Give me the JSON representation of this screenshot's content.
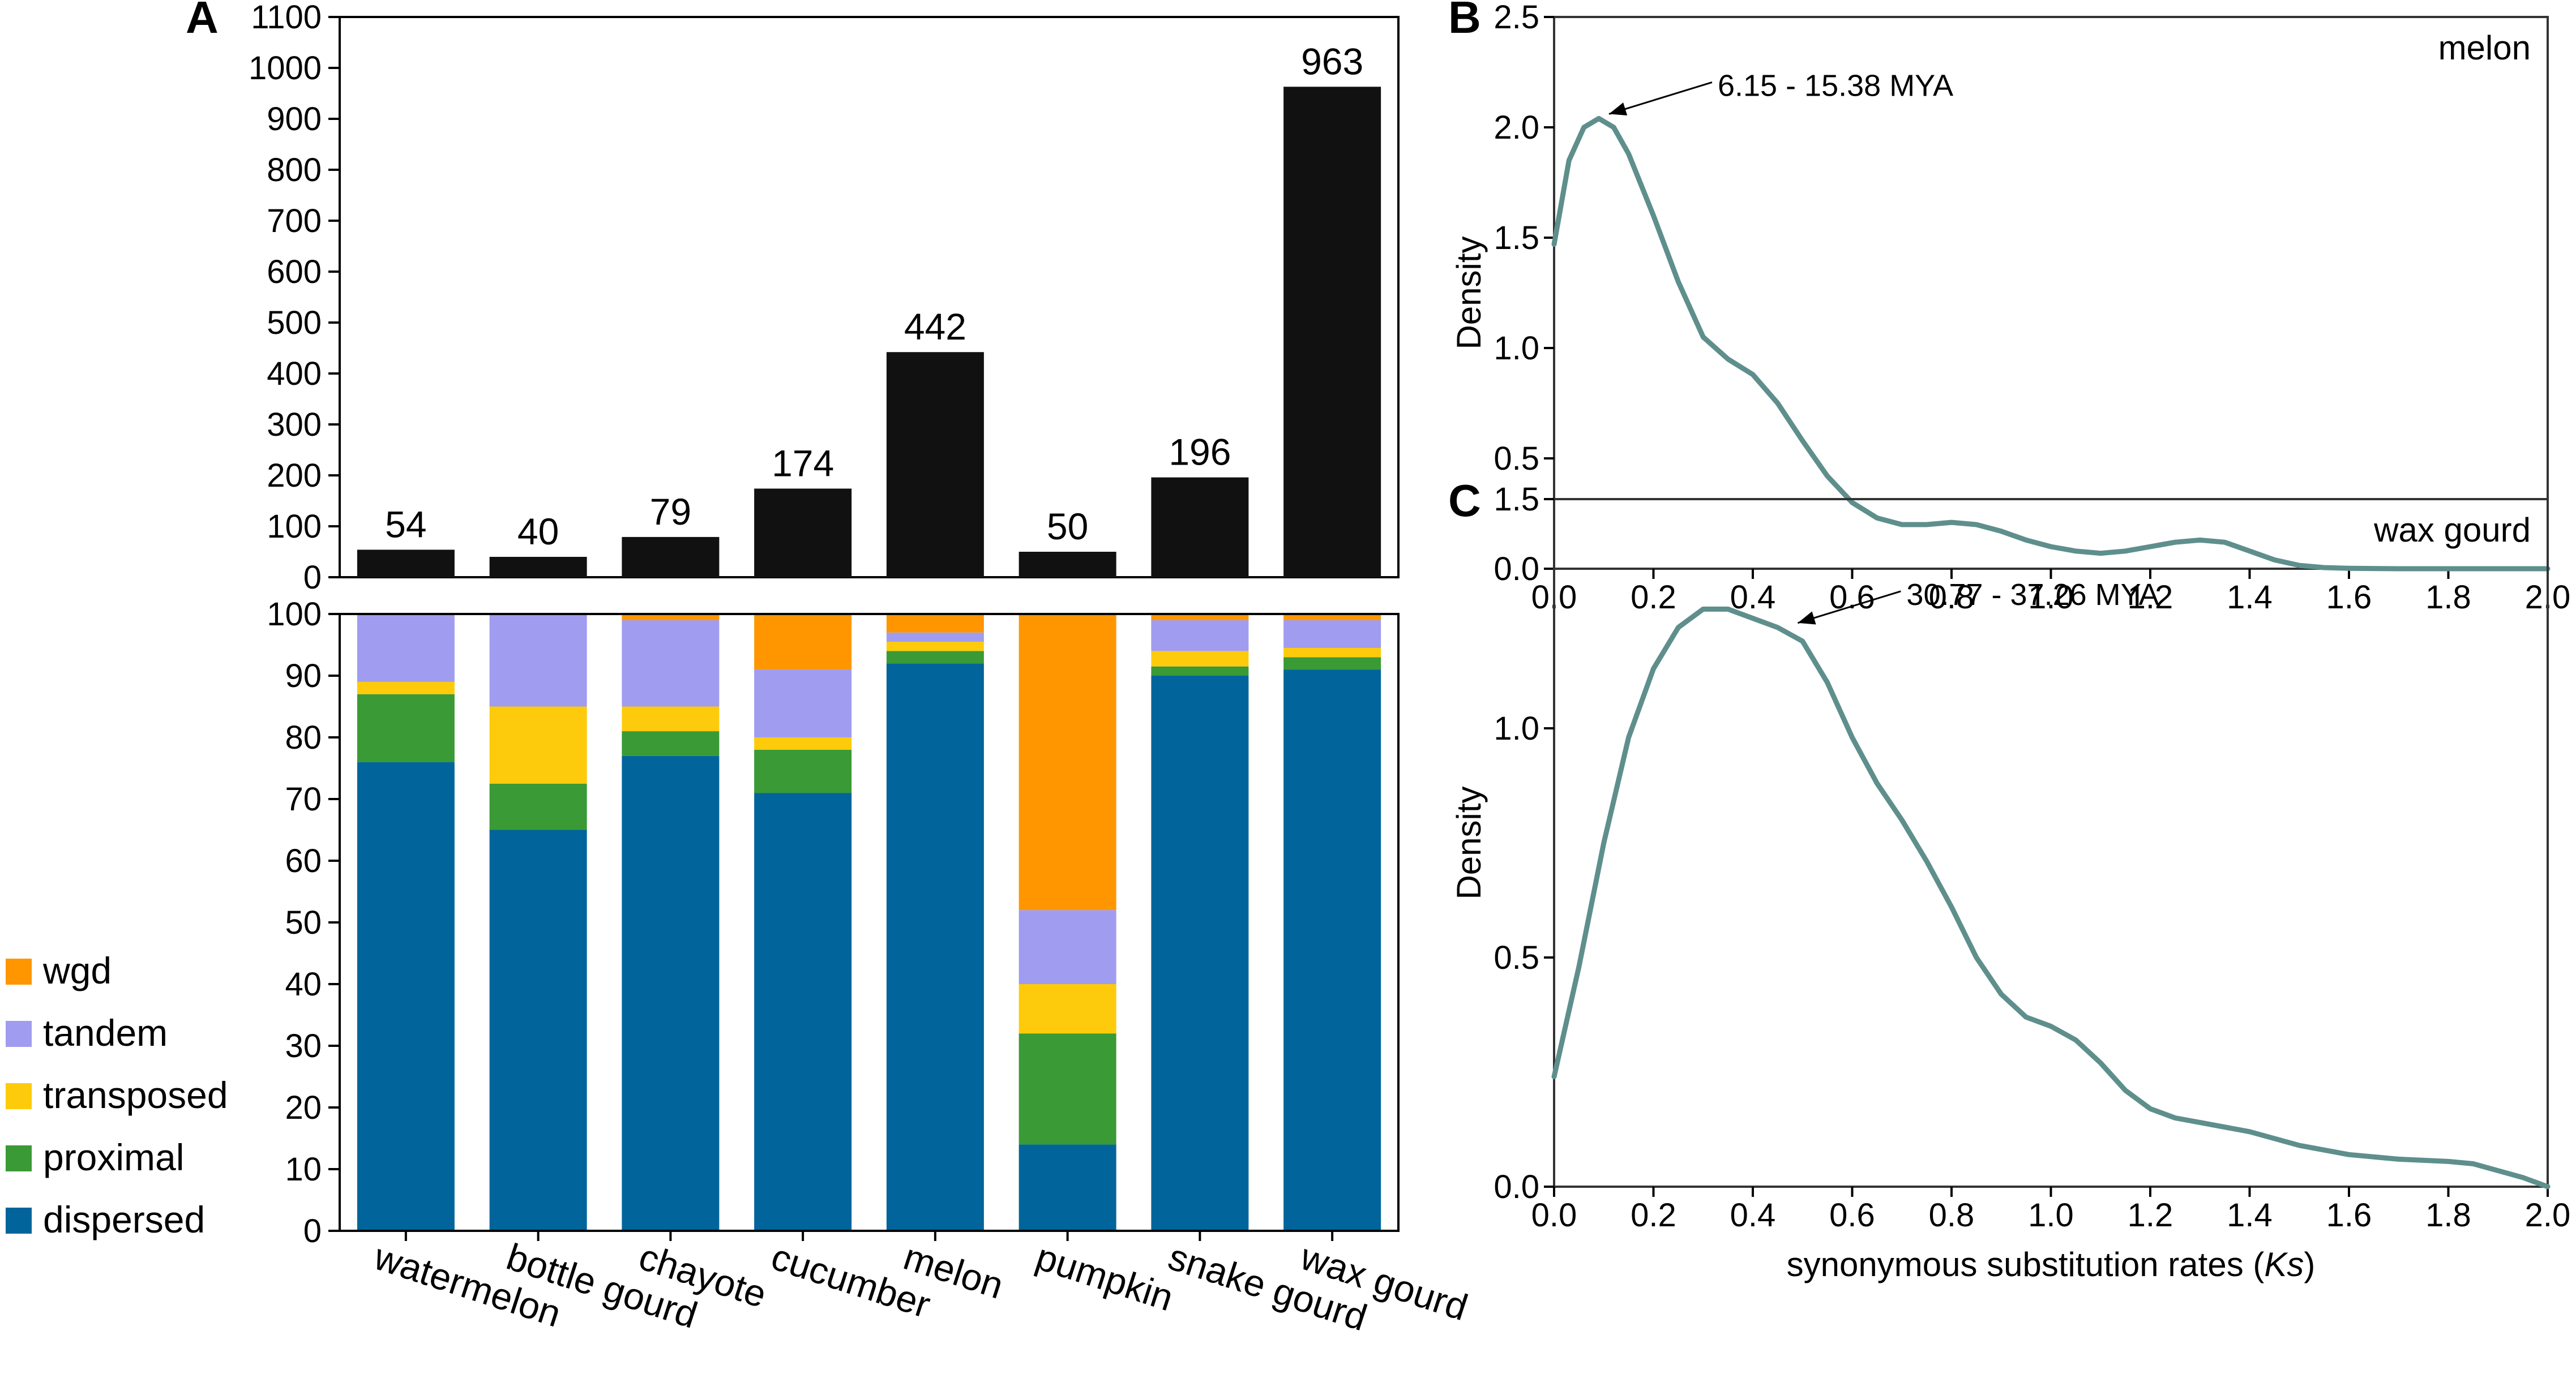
{
  "chart_data": [
    {
      "panel": "A",
      "type": "bar",
      "title": "",
      "categories": [
        "watermelon",
        "bottle gourd",
        "chayote",
        "cucumber",
        "melon",
        "pumpkin",
        "snake gourd",
        "wax gourd"
      ],
      "values": [
        54,
        40,
        79,
        174,
        442,
        50,
        196,
        963
      ],
      "value_labels": [
        "54",
        "40",
        "79",
        "174",
        "442",
        "50",
        "196",
        "963"
      ],
      "ylim": [
        0,
        1100
      ],
      "yticks": [
        "0",
        "100",
        "200",
        "300",
        "400",
        "500",
        "600",
        "700",
        "800",
        "900",
        "1000",
        "1100"
      ],
      "color": "#111111"
    },
    {
      "panel": "A",
      "type": "bar",
      "stacked": true,
      "categories": [
        "watermelon",
        "bottle gourd",
        "chayote",
        "cucumber",
        "melon",
        "pumpkin",
        "snake gourd",
        "wax gourd"
      ],
      "ylim": [
        0,
        100
      ],
      "yticks": [
        "0",
        "10",
        "20",
        "30",
        "40",
        "50",
        "60",
        "70",
        "80",
        "90",
        "100"
      ],
      "series": [
        {
          "name": "dispersed",
          "color": "#01659b",
          "values": [
            76,
            65,
            77,
            71,
            92,
            14,
            90,
            91
          ]
        },
        {
          "name": "proximal",
          "color": "#3a9a36",
          "values": [
            11,
            7.5,
            4,
            7,
            2,
            18,
            1.5,
            2
          ]
        },
        {
          "name": "transposed",
          "color": "#fdcb0b",
          "values": [
            2,
            12.5,
            4,
            2,
            1.5,
            8,
            2.5,
            1.5
          ]
        },
        {
          "name": "tandem",
          "color": "#a09cf0",
          "values": [
            11,
            15,
            14,
            11,
            1.5,
            12,
            5,
            4.5
          ]
        },
        {
          "name": "wgd",
          "color": "#ff9600",
          "values": [
            0,
            0,
            1,
            9,
            3,
            48,
            1,
            1
          ]
        }
      ],
      "legend": [
        "wgd",
        "tandem",
        "transposed",
        "proximal",
        "dispersed"
      ]
    },
    {
      "panel": "B",
      "type": "line",
      "label": "melon",
      "xlabel": "",
      "ylabel": "Density",
      "xlim": [
        0,
        2.0
      ],
      "ylim": [
        0,
        2.5
      ],
      "xticks": [
        "0.0",
        "0.2",
        "0.4",
        "0.6",
        "0.8",
        "1.0",
        "1.2",
        "1.4",
        "1.6",
        "1.8",
        "2.0"
      ],
      "yticks": [
        "0.0",
        "0.5",
        "1.0",
        "1.5",
        "2.0",
        "2.5"
      ],
      "annotation": {
        "text": "6.15 - 15.38 MYA",
        "x": 0.09,
        "y": 2.04
      },
      "color": "#5e8f8c",
      "x": [
        0,
        0.03,
        0.06,
        0.09,
        0.12,
        0.15,
        0.2,
        0.25,
        0.3,
        0.35,
        0.4,
        0.45,
        0.5,
        0.55,
        0.6,
        0.65,
        0.7,
        0.75,
        0.8,
        0.85,
        0.9,
        0.95,
        1.0,
        1.05,
        1.1,
        1.15,
        1.2,
        1.25,
        1.3,
        1.35,
        1.4,
        1.45,
        1.5,
        1.55,
        1.6,
        1.7,
        1.8,
        1.9,
        2.0
      ],
      "y": [
        1.47,
        1.85,
        2.0,
        2.04,
        2.0,
        1.88,
        1.6,
        1.3,
        1.05,
        0.95,
        0.88,
        0.75,
        0.58,
        0.42,
        0.3,
        0.23,
        0.2,
        0.2,
        0.21,
        0.2,
        0.17,
        0.13,
        0.1,
        0.08,
        0.07,
        0.08,
        0.1,
        0.12,
        0.13,
        0.12,
        0.08,
        0.04,
        0.015,
        0.005,
        0.002,
        0,
        0,
        0,
        0
      ]
    },
    {
      "panel": "C",
      "type": "line",
      "label": "wax gourd",
      "xlabel": "synonymous substitution rates (Ks)",
      "ylabel": "Density",
      "xlim": [
        0,
        2.0
      ],
      "ylim": [
        0,
        1.5
      ],
      "xticks": [
        "0.0",
        "0.2",
        "0.4",
        "0.6",
        "0.8",
        "1.0",
        "1.2",
        "1.4",
        "1.6",
        "1.8",
        "2.0"
      ],
      "yticks": [
        "0.0",
        "0.5",
        "1.0",
        "1.5"
      ],
      "annotation": {
        "text": "30.77 - 37.26 MYA",
        "x": 0.47,
        "y": 1.22
      },
      "color": "#5e8f8c",
      "x": [
        0,
        0.05,
        0.1,
        0.15,
        0.2,
        0.25,
        0.3,
        0.35,
        0.4,
        0.45,
        0.5,
        0.55,
        0.6,
        0.65,
        0.7,
        0.75,
        0.8,
        0.85,
        0.9,
        0.95,
        1.0,
        1.05,
        1.1,
        1.15,
        1.2,
        1.25,
        1.3,
        1.4,
        1.5,
        1.6,
        1.7,
        1.8,
        1.85,
        1.9,
        1.95,
        2.0
      ],
      "y": [
        0.24,
        0.48,
        0.75,
        0.98,
        1.13,
        1.22,
        1.26,
        1.26,
        1.24,
        1.22,
        1.19,
        1.1,
        0.98,
        0.88,
        0.8,
        0.71,
        0.61,
        0.5,
        0.42,
        0.37,
        0.35,
        0.32,
        0.27,
        0.21,
        0.17,
        0.15,
        0.14,
        0.12,
        0.09,
        0.07,
        0.06,
        0.055,
        0.05,
        0.035,
        0.02,
        0.0
      ]
    }
  ]
}
